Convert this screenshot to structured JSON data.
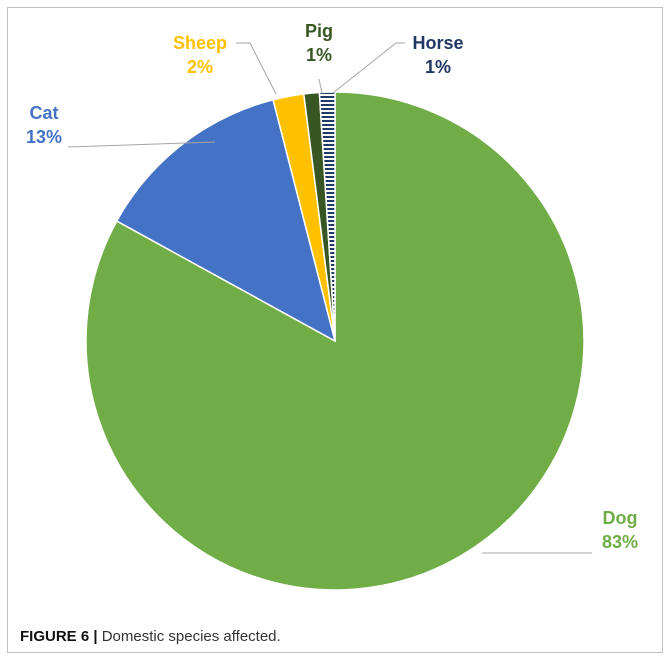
{
  "chart_data": {
    "type": "pie",
    "slices": [
      {
        "name": "Dog",
        "pct_label": "83%",
        "value": 83,
        "color": "#70ad47",
        "pattern": false
      },
      {
        "name": "Cat",
        "pct_label": "13%",
        "value": 13,
        "color": "#4472c4",
        "pattern": false
      },
      {
        "name": "Sheep",
        "pct_label": "2%",
        "value": 2,
        "color": "#ffc000",
        "pattern": false
      },
      {
        "name": "Pig",
        "pct_label": "1%",
        "value": 1,
        "color": "#375623",
        "pattern": false
      },
      {
        "name": "Horse",
        "pct_label": "1%",
        "value": 1,
        "color": "#1f3864",
        "pattern": true
      }
    ],
    "label_colors": {
      "Dog": "#70ad47",
      "Cat": "#4472c4",
      "Sheep": "#ffc000",
      "Pig": "#375623",
      "Horse": "#1f3864"
    },
    "start": "12 o'clock",
    "direction": "clockwise"
  },
  "caption": {
    "figure_label": "FIGURE 6 |",
    "text": " Domestic species affected."
  }
}
